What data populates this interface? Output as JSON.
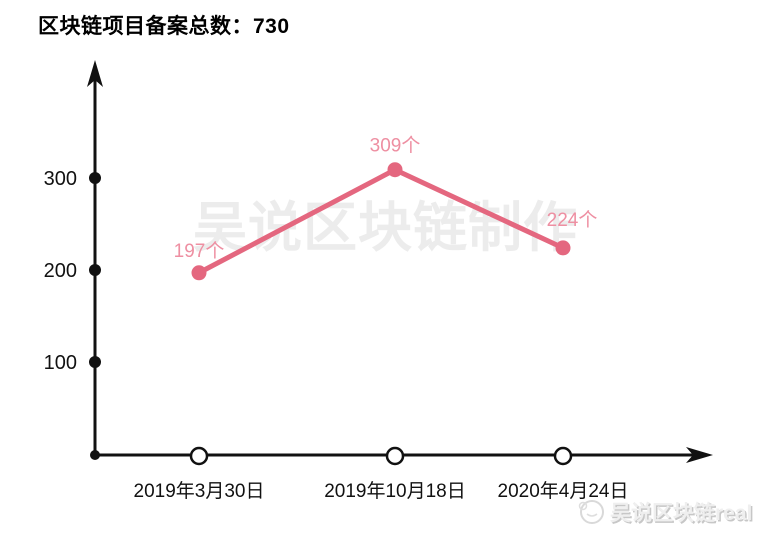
{
  "page": {
    "title": "区块链项目备案总数：730",
    "watermark_center": "吴说区块链制作",
    "watermark_bottom": "吴说区块链real"
  },
  "chart_data": {
    "type": "line",
    "title": "区块链项目备案总数：730",
    "total": 730,
    "categories": [
      "2019年3月30日",
      "2019年10月18日",
      "2020年4月24日"
    ],
    "values": [
      197,
      309,
      224
    ],
    "point_labels": [
      "197个",
      "309个",
      "224个"
    ],
    "y_ticks": [
      100,
      200,
      300
    ],
    "ylim": [
      0,
      430
    ],
    "xlabel": "",
    "ylabel": "",
    "grid": false,
    "legend": "none",
    "colors": {
      "line": "#e4677f",
      "point": "#e4677f",
      "point_label": "#ee8fa2",
      "axis": "#111111",
      "tick_label": "#111111",
      "watermark": "#ececec"
    }
  }
}
